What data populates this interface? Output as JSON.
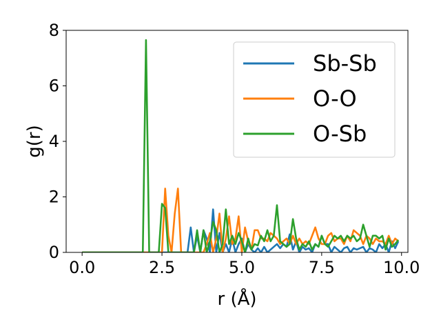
{
  "chart_data": {
    "type": "line",
    "xlabel": "r (Å)",
    "ylabel": "g(r)",
    "xlim": [
      -0.5,
      10.2
    ],
    "ylim": [
      0,
      8
    ],
    "xticks": [
      0.0,
      2.5,
      5.0,
      7.5,
      10.0
    ],
    "xtick_labels": [
      "0.0",
      "2.5",
      "5.0",
      "7.5",
      "10.0"
    ],
    "yticks": [
      0,
      2,
      4,
      6,
      8
    ],
    "ytick_labels": [
      "0",
      "2",
      "4",
      "6",
      "8"
    ],
    "grid": false,
    "legend_position": "top-right",
    "x": [
      0.0,
      0.1,
      0.2,
      0.3,
      0.4,
      0.5,
      0.6,
      0.7,
      0.8,
      0.9,
      1.0,
      1.1,
      1.2,
      1.3,
      1.4,
      1.5,
      1.6,
      1.7,
      1.8,
      1.9,
      2.0,
      2.1,
      2.2,
      2.3,
      2.4,
      2.5,
      2.6,
      2.7,
      2.8,
      2.9,
      3.0,
      3.1,
      3.2,
      3.3,
      3.4,
      3.5,
      3.6,
      3.7,
      3.8,
      3.9,
      4.0,
      4.1,
      4.2,
      4.3,
      4.4,
      4.5,
      4.6,
      4.7,
      4.8,
      4.9,
      5.0,
      5.1,
      5.2,
      5.3,
      5.4,
      5.5,
      5.6,
      5.7,
      5.8,
      5.9,
      6.0,
      6.1,
      6.2,
      6.3,
      6.4,
      6.5,
      6.6,
      6.7,
      6.8,
      6.9,
      7.0,
      7.1,
      7.2,
      7.3,
      7.4,
      7.5,
      7.6,
      7.7,
      7.8,
      7.9,
      8.0,
      8.1,
      8.2,
      8.3,
      8.4,
      8.5,
      8.6,
      8.7,
      8.8,
      8.9,
      9.0,
      9.1,
      9.2,
      9.3,
      9.4,
      9.5,
      9.6,
      9.7,
      9.8,
      9.9
    ],
    "series": [
      {
        "name": "Sb-Sb",
        "color": "#1f77b4",
        "values": [
          0,
          0,
          0,
          0,
          0,
          0,
          0,
          0,
          0,
          0,
          0,
          0,
          0,
          0,
          0,
          0,
          0,
          0,
          0,
          0,
          0,
          0,
          0,
          0,
          0,
          0,
          0,
          0,
          0,
          0,
          0,
          0,
          0,
          0,
          0.9,
          0,
          0.6,
          0,
          0.8,
          0.5,
          0,
          1.55,
          0,
          0.7,
          0,
          0.3,
          0,
          0.5,
          0,
          0.3,
          0.5,
          0,
          0.3,
          0.1,
          0,
          0.15,
          0,
          0.2,
          0,
          0.1,
          0.2,
          0.3,
          0.15,
          0.3,
          0.2,
          0.65,
          0.1,
          0.4,
          0,
          0.2,
          0.1,
          0.15,
          0,
          0.3,
          0.2,
          0.6,
          0.3,
          0.3,
          0,
          0.2,
          0.1,
          0,
          0.15,
          0.2,
          0,
          0.15,
          0.1,
          0.15,
          0.2,
          0,
          0.15,
          0.1,
          0,
          0.3,
          0.15,
          0.3,
          0,
          0.4,
          0.15,
          0.4
        ]
      },
      {
        "name": "O-O",
        "color": "#ff7f0e",
        "values": [
          0,
          0,
          0,
          0,
          0,
          0,
          0,
          0,
          0,
          0,
          0,
          0,
          0,
          0,
          0,
          0,
          0,
          0,
          0,
          0,
          0,
          0,
          0,
          0,
          0,
          0,
          2.3,
          0.6,
          0,
          1.4,
          2.3,
          0,
          0,
          0,
          0,
          0,
          0,
          0,
          0,
          0.3,
          0.7,
          0,
          0.5,
          1.4,
          0,
          0.5,
          1.3,
          0.3,
          0.5,
          1.3,
          0,
          0.9,
          0.4,
          0.1,
          0.8,
          0.8,
          0.5,
          0.5,
          0.4,
          0.7,
          0.6,
          0.5,
          0.3,
          0.4,
          0.5,
          0.3,
          0.6,
          0.3,
          0.5,
          0.3,
          0.4,
          0.3,
          0.6,
          0.9,
          0.5,
          0.3,
          0.3,
          0.6,
          0.7,
          0.4,
          0.5,
          0.5,
          0.3,
          0.6,
          0.4,
          0.8,
          0.7,
          0.6,
          0.3,
          0.6,
          0.5,
          0.3,
          0.5,
          0.4,
          0.4,
          0.3,
          0.6,
          0.3,
          0.5,
          0.4
        ]
      },
      {
        "name": "O-Sb",
        "color": "#2ca02c",
        "values": [
          0,
          0,
          0,
          0,
          0,
          0,
          0,
          0,
          0,
          0,
          0,
          0,
          0,
          0,
          0,
          0,
          0,
          0,
          0,
          0,
          7.65,
          0,
          0,
          0,
          0,
          1.75,
          1.6,
          0,
          0,
          0,
          0,
          0,
          0,
          0,
          0,
          0,
          0.8,
          0,
          0.8,
          0,
          0.4,
          1.1,
          0.8,
          0,
          0.3,
          1.55,
          0.3,
          0.6,
          0.3,
          0.7,
          0.4,
          0,
          0.5,
          0.1,
          0.3,
          0.25,
          0.6,
          0.4,
          0.8,
          0.4,
          0.6,
          1.7,
          0.4,
          0.3,
          0.2,
          0.3,
          1.2,
          0.5,
          0.1,
          0.3,
          0.2,
          0.4,
          0.1,
          0.3,
          0.2,
          0.6,
          0.3,
          0.2,
          0.4,
          0.6,
          0.5,
          0.6,
          0.4,
          0.6,
          0.5,
          0.6,
          0.4,
          0.5,
          1.0,
          0.6,
          0.2,
          0.6,
          0.6,
          0.5,
          0.6,
          0.1,
          0.5,
          0.2,
          0.3,
          0.45
        ]
      }
    ]
  }
}
